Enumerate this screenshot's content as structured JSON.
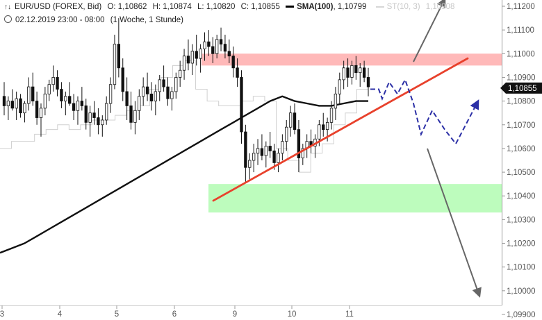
{
  "header": {
    "symbol": "EUR/USD (FOREX, Bid)",
    "open": "O: 1,10862",
    "high": "H: 1,10874",
    "low": "L: 1,10820",
    "close": "C: 1,10855",
    "sma_label": "SMA(100)",
    "sma_value": "1,10799",
    "st_label": "ST(10, 3)",
    "st_value": "1,10908",
    "datetime": "02.12.2019 23:00 - 08:00",
    "timeframe": "(1 Woche, 1 Stunde)"
  },
  "chart_data": {
    "type": "candlestick",
    "instrument": "EUR/USD",
    "yticks": [
      {
        "v": 1.112,
        "label": "1,11200"
      },
      {
        "v": 1.111,
        "label": "1,11100"
      },
      {
        "v": 1.11,
        "label": "1,11000"
      },
      {
        "v": 1.109,
        "label": "1,10900"
      },
      {
        "v": 1.108,
        "label": "1,10800"
      },
      {
        "v": 1.107,
        "label": "1,10700"
      },
      {
        "v": 1.106,
        "label": "1,10600"
      },
      {
        "v": 1.105,
        "label": "1,10500"
      },
      {
        "v": 1.104,
        "label": "1,10400"
      },
      {
        "v": 1.103,
        "label": "1,10300"
      },
      {
        "v": 1.102,
        "label": "1,10200"
      },
      {
        "v": 1.101,
        "label": "1,10100"
      },
      {
        "v": 1.1,
        "label": "1,10000"
      },
      {
        "v": 1.099,
        "label": "1,09900"
      }
    ],
    "ylim": [
      1.0989,
      1.1122
    ],
    "current_price": {
      "v": 1.10855,
      "label": "1,10855"
    },
    "xticks": [
      "3",
      "4",
      "5",
      "6",
      "9",
      "10",
      "11"
    ],
    "resistance_zone": {
      "from": 1.1095,
      "to": 1.11,
      "color": "#ffb9b9"
    },
    "support_zone": {
      "from": 1.1033,
      "to": 1.1045,
      "color": "#bdfcbd"
    },
    "trendline": {
      "from": 1.1038,
      "to": 1.1098,
      "color": "#e8412c"
    },
    "sma100": [
      1.1016,
      1.1018,
      1.102,
      1.1023,
      1.1026,
      1.1029,
      1.1032,
      1.1035,
      1.1038,
      1.1041,
      1.1044,
      1.1047,
      1.105,
      1.1053,
      1.1056,
      1.1059,
      1.1062,
      1.1065,
      1.1068,
      1.1071,
      1.1074,
      1.1077,
      1.108,
      1.1082,
      1.108,
      1.1079,
      1.1078,
      1.1078,
      1.1079,
      1.108,
      1.108
    ],
    "supertrend": [
      1.106,
      1.1063,
      1.1063,
      1.1066,
      1.1068,
      1.107,
      1.1068,
      1.107,
      1.1072,
      1.1072,
      1.1074,
      1.1076,
      1.1078,
      1.1085,
      1.109,
      1.1095,
      1.1097,
      1.1085,
      1.108,
      1.1078,
      1.1078,
      1.108,
      1.1082,
      1.108,
      1.106,
      1.1055,
      1.105,
      1.1058,
      1.1062,
      1.107,
      1.1075,
      1.1085,
      1.1091
    ],
    "candles": [
      [
        1.1082,
        1.1088,
        1.1074,
        1.1078
      ],
      [
        1.1078,
        1.1082,
        1.1072,
        1.108
      ],
      [
        1.108,
        1.1085,
        1.1076,
        1.1077
      ],
      [
        1.1077,
        1.1084,
        1.1072,
        1.1081
      ],
      [
        1.1081,
        1.1083,
        1.1073,
        1.1075
      ],
      [
        1.1075,
        1.108,
        1.1071,
        1.1079
      ],
      [
        1.1079,
        1.109,
        1.1076,
        1.1086
      ],
      [
        1.1086,
        1.1092,
        1.1078,
        1.108
      ],
      [
        1.108,
        1.1084,
        1.107,
        1.1073
      ],
      [
        1.1073,
        1.1079,
        1.1065,
        1.1077
      ],
      [
        1.1077,
        1.1086,
        1.1074,
        1.1083
      ],
      [
        1.1083,
        1.1089,
        1.108,
        1.1087
      ],
      [
        1.1087,
        1.1095,
        1.1084,
        1.109
      ],
      [
        1.109,
        1.1093,
        1.1082,
        1.1085
      ],
      [
        1.1085,
        1.1088,
        1.1077,
        1.108
      ],
      [
        1.108,
        1.1084,
        1.1074,
        1.1082
      ],
      [
        1.1082,
        1.1088,
        1.1078,
        1.1079
      ],
      [
        1.1079,
        1.1083,
        1.1072,
        1.1076
      ],
      [
        1.1076,
        1.1082,
        1.107,
        1.108
      ],
      [
        1.108,
        1.1086,
        1.1076,
        1.1078
      ],
      [
        1.1078,
        1.1081,
        1.1068,
        1.1071
      ],
      [
        1.1071,
        1.1078,
        1.1065,
        1.1075
      ],
      [
        1.1075,
        1.108,
        1.107,
        1.1073
      ],
      [
        1.1073,
        1.1077,
        1.1066,
        1.107
      ],
      [
        1.107,
        1.1074,
        1.1065,
        1.1072
      ],
      [
        1.1072,
        1.1082,
        1.107,
        1.1079
      ],
      [
        1.1079,
        1.109,
        1.1075,
        1.1087
      ],
      [
        1.1087,
        1.1108,
        1.1085,
        1.1104
      ],
      [
        1.1104,
        1.1115,
        1.109,
        1.1094
      ],
      [
        1.1094,
        1.1098,
        1.108,
        1.1084
      ],
      [
        1.1084,
        1.109,
        1.1072,
        1.1078
      ],
      [
        1.1078,
        1.1084,
        1.1068,
        1.1071
      ],
      [
        1.1071,
        1.108,
        1.1066,
        1.1076
      ],
      [
        1.1076,
        1.1085,
        1.1072,
        1.1082
      ],
      [
        1.1082,
        1.109,
        1.1078,
        1.1086
      ],
      [
        1.1086,
        1.1092,
        1.108,
        1.1083
      ],
      [
        1.1083,
        1.1088,
        1.1076,
        1.108
      ],
      [
        1.108,
        1.1087,
        1.1074,
        1.1084
      ],
      [
        1.1084,
        1.1091,
        1.108,
        1.1089
      ],
      [
        1.1089,
        1.1095,
        1.1084,
        1.1086
      ],
      [
        1.1086,
        1.109,
        1.1078,
        1.1081
      ],
      [
        1.1081,
        1.1086,
        1.1076,
        1.1084
      ],
      [
        1.1084,
        1.1092,
        1.1081,
        1.109
      ],
      [
        1.109,
        1.1097,
        1.1086,
        1.1093
      ],
      [
        1.1093,
        1.1102,
        1.1089,
        1.1099
      ],
      [
        1.1099,
        1.1106,
        1.1093,
        1.1096
      ],
      [
        1.1096,
        1.1104,
        1.1091,
        1.1101
      ],
      [
        1.1101,
        1.1108,
        1.1095,
        1.1098
      ],
      [
        1.1098,
        1.1104,
        1.1092,
        1.1102
      ],
      [
        1.1102,
        1.1109,
        1.1097,
        1.1105
      ],
      [
        1.1105,
        1.111,
        1.1099,
        1.1103
      ],
      [
        1.1103,
        1.1107,
        1.1096,
        1.11
      ],
      [
        1.11,
        1.1108,
        1.1098,
        1.1106
      ],
      [
        1.1106,
        1.1111,
        1.1101,
        1.1104
      ],
      [
        1.1104,
        1.1108,
        1.1098,
        1.1101
      ],
      [
        1.1101,
        1.1106,
        1.1096,
        1.1099
      ],
      [
        1.1099,
        1.1103,
        1.109,
        1.1094
      ],
      [
        1.1094,
        1.1098,
        1.1086,
        1.109
      ],
      [
        1.109,
        1.1093,
        1.1062,
        1.1067
      ],
      [
        1.1067,
        1.107,
        1.1046,
        1.1052
      ],
      [
        1.1052,
        1.1058,
        1.1047,
        1.1055
      ],
      [
        1.1055,
        1.1062,
        1.105,
        1.1058
      ],
      [
        1.1058,
        1.1064,
        1.1053,
        1.106
      ],
      [
        1.106,
        1.1066,
        1.1055,
        1.1057
      ],
      [
        1.1057,
        1.1063,
        1.1052,
        1.1061
      ],
      [
        1.1061,
        1.1067,
        1.1056,
        1.1059
      ],
      [
        1.1059,
        1.1062,
        1.1051,
        1.1054
      ],
      [
        1.1054,
        1.106,
        1.105,
        1.1058
      ],
      [
        1.1058,
        1.1066,
        1.1055,
        1.1063
      ],
      [
        1.1063,
        1.1072,
        1.1059,
        1.1069
      ],
      [
        1.1069,
        1.1078,
        1.1065,
        1.1075
      ],
      [
        1.1075,
        1.1079,
        1.1066,
        1.1068
      ],
      [
        1.1068,
        1.1072,
        1.105,
        1.1056
      ],
      [
        1.1056,
        1.1062,
        1.1053,
        1.106
      ],
      [
        1.106,
        1.1066,
        1.1056,
        1.1063
      ],
      [
        1.1063,
        1.1068,
        1.1058,
        1.1061
      ],
      [
        1.1061,
        1.1066,
        1.1056,
        1.1064
      ],
      [
        1.1064,
        1.1072,
        1.1061,
        1.107
      ],
      [
        1.107,
        1.1075,
        1.1065,
        1.1068
      ],
      [
        1.1068,
        1.1073,
        1.1063,
        1.1071
      ],
      [
        1.1071,
        1.108,
        1.1068,
        1.1077
      ],
      [
        1.1077,
        1.1086,
        1.1072,
        1.1083
      ],
      [
        1.1083,
        1.1092,
        1.1079,
        1.1089
      ],
      [
        1.1089,
        1.1097,
        1.1085,
        1.1094
      ],
      [
        1.1094,
        1.1098,
        1.1086,
        1.109
      ],
      [
        1.109,
        1.1097,
        1.1087,
        1.1095
      ],
      [
        1.1095,
        1.1099,
        1.1089,
        1.1092
      ],
      [
        1.1092,
        1.1096,
        1.1086,
        1.1094
      ],
      [
        1.1094,
        1.1097,
        1.1088,
        1.109
      ],
      [
        1.109,
        1.1094,
        1.1082,
        1.1086
      ]
    ],
    "projection_path": [
      1.1085,
      1.1085,
      1.1081,
      1.1088,
      1.1083,
      1.1089,
      1.1079,
      1.1066,
      1.1076,
      1.1068,
      1.1062,
      1.108
    ],
    "arrow_up_target": 1.1123,
    "arrow_down_target": 1.0999
  }
}
